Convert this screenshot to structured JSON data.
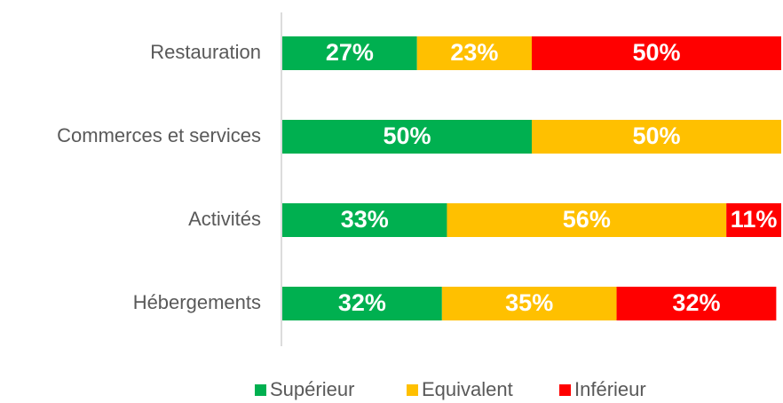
{
  "chart_data": {
    "type": "stacked-barh",
    "categories": [
      "Restauration",
      "Commerces et services",
      "Activités",
      "Hébergements"
    ],
    "series": [
      {
        "name": "Supérieur",
        "color": "#00b050",
        "values": [
          27,
          50,
          33,
          32
        ],
        "value_labels": [
          "27%",
          "50%",
          "33%",
          "32%"
        ]
      },
      {
        "name": "Equivalent",
        "color": "#ffc000",
        "values": [
          23,
          50,
          56,
          35
        ],
        "value_labels": [
          "23%",
          "50%",
          "56%",
          "35%"
        ]
      },
      {
        "name": "Inférieur",
        "color": "#ff0000",
        "values": [
          50,
          null,
          11,
          32
        ],
        "value_labels": [
          "50%",
          null,
          "11%",
          "32%"
        ]
      }
    ],
    "xlim": [
      0,
      100
    ],
    "legend": "bottom"
  }
}
